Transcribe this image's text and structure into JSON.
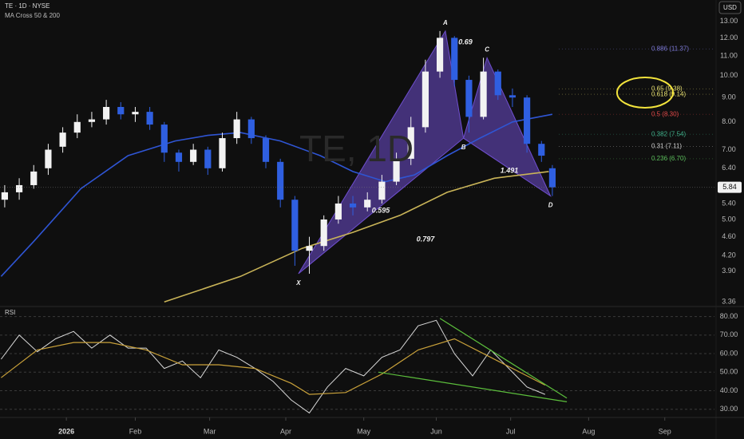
{
  "chart_data": [
    {
      "type": "candlestick",
      "title": "TE · 1D · NYSE",
      "subtitle": "MA Cross 50 & 200",
      "watermark": "TE, 1D",
      "currency": "USD",
      "log": true,
      "xlim": [
        -18.3,
        178.7
      ],
      "ylim": [
        3.3,
        14.4
      ],
      "yticks": [
        {
          "value": 13,
          "label": "13.00"
        },
        {
          "value": 12,
          "label": "12.00"
        },
        {
          "value": 11,
          "label": "11.00"
        },
        {
          "value": 10,
          "label": "10.00"
        },
        {
          "value": 9,
          "label": "9.00"
        },
        {
          "value": 8,
          "label": "8.00"
        },
        {
          "value": 7,
          "label": "7.00"
        },
        {
          "value": 6.4,
          "label": "6.40"
        },
        {
          "value": 5.4,
          "label": "5.40"
        },
        {
          "value": 5,
          "label": "5.00"
        },
        {
          "value": 4.6,
          "label": "4.60"
        },
        {
          "value": 4.2,
          "label": "4.20"
        },
        {
          "value": 3.9,
          "label": "3.90"
        },
        {
          "value": 3.36,
          "label": "3.36"
        }
      ],
      "up_color": "#f2f2f2",
      "down_color": "#2f5fe0",
      "x": [
        -17,
        -13,
        -9,
        -5,
        -1,
        3,
        7,
        11,
        15,
        19,
        23,
        27,
        31,
        35,
        39,
        43,
        47,
        51,
        55,
        59,
        63,
        67,
        71,
        75,
        79,
        83,
        87,
        91,
        95,
        99,
        103,
        107,
        111,
        115,
        119,
        123,
        127,
        131,
        134
      ],
      "open": [
        5.5,
        5.7,
        5.9,
        6.4,
        7.1,
        7.6,
        8.0,
        8.1,
        8.6,
        8.3,
        8.4,
        7.9,
        6.9,
        6.6,
        7.0,
        6.4,
        7.4,
        8.1,
        7.4,
        6.6,
        5.5,
        4.3,
        4.4,
        5.0,
        5.4,
        5.3,
        5.5,
        6.0,
        6.7,
        7.8,
        10.2,
        12.0,
        9.8,
        8.2,
        10.2,
        9.1,
        9.0,
        7.2,
        6.4
      ],
      "high": [
        5.9,
        6.1,
        6.5,
        7.2,
        7.8,
        8.3,
        8.4,
        8.9,
        8.8,
        8.6,
        8.6,
        8.0,
        7.0,
        7.2,
        7.1,
        7.6,
        8.4,
        8.2,
        7.5,
        6.7,
        5.6,
        4.6,
        5.1,
        5.6,
        5.6,
        5.7,
        6.2,
        6.9,
        8.2,
        10.8,
        12.4,
        12.1,
        10.0,
        10.9,
        10.3,
        9.4,
        9.1,
        7.3,
        6.5
      ],
      "low": [
        5.3,
        5.5,
        5.8,
        6.2,
        6.9,
        7.4,
        7.8,
        7.9,
        8.1,
        8.0,
        7.7,
        6.6,
        6.3,
        6.5,
        6.2,
        6.3,
        7.2,
        7.2,
        6.4,
        5.3,
        4.0,
        3.85,
        4.3,
        4.9,
        5.1,
        5.2,
        5.4,
        5.9,
        6.5,
        7.6,
        9.9,
        9.5,
        7.6,
        8.1,
        8.9,
        8.6,
        6.9,
        6.6,
        5.6
      ],
      "close": [
        5.7,
        5.9,
        6.3,
        7.0,
        7.6,
        8.0,
        8.1,
        8.6,
        8.3,
        8.4,
        7.9,
        6.9,
        6.6,
        7.0,
        6.4,
        7.4,
        8.1,
        7.4,
        6.6,
        5.5,
        4.3,
        4.4,
        5.0,
        5.4,
        5.3,
        5.5,
        6.0,
        6.7,
        7.8,
        10.2,
        12.0,
        9.8,
        8.2,
        10.2,
        9.1,
        9.0,
        7.2,
        6.8,
        5.84
      ],
      "last_label": {
        "value": 5.84,
        "label": "5.84"
      },
      "overlays": [
        {
          "color": "#2f55d4",
          "x": [
            -18,
            -9,
            4,
            17,
            30,
            39,
            48,
            59,
            70,
            79,
            88,
            96,
            105,
            114,
            123,
            134
          ],
          "values": [
            3.8,
            4.5,
            5.8,
            6.8,
            7.3,
            7.5,
            7.6,
            7.3,
            6.8,
            6.3,
            6.0,
            6.2,
            6.8,
            7.4,
            8.0,
            8.3
          ]
        },
        {
          "color": "#c9b458",
          "x": [
            27,
            48,
            65,
            79,
            92,
            105,
            118,
            133
          ],
          "values": [
            3.36,
            3.8,
            4.35,
            4.7,
            5.1,
            5.7,
            6.1,
            6.3
          ]
        }
      ],
      "pattern_color": "#6f4fd0",
      "pattern": [
        {
          "label": "X",
          "x": 64,
          "price": 3.85
        },
        {
          "label": "A",
          "x": 104.5,
          "price": 12.4
        },
        {
          "label": "B",
          "x": 109.5,
          "price": 7.4
        },
        {
          "label": "C",
          "x": 116,
          "price": 10.9
        },
        {
          "label": "D",
          "x": 133.5,
          "price": 5.6
        }
      ],
      "ratio_labels": [
        "0.69",
        "0.595",
        "0.797",
        "1.491"
      ],
      "fib_levels": [
        {
          "ratio": 0.886,
          "price": 11.37,
          "label": "0.886 (11.37)",
          "color": "#7e7ad8"
        },
        {
          "ratio": 0.65,
          "price": 9.38,
          "label": "0.65 (9.38)",
          "color": "#e8e070"
        },
        {
          "ratio": 0.618,
          "price": 9.14,
          "label": "0.618 (9.14)",
          "color": "#e8e070"
        },
        {
          "ratio": 0.5,
          "price": 8.3,
          "label": "0.5 (8.30)",
          "color": "#e04848"
        },
        {
          "ratio": 0.382,
          "price": 7.54,
          "label": "0.382 (7.54)",
          "color": "#3fb08a"
        },
        {
          "ratio": 0.31,
          "price": 7.11,
          "label": "0.31 (7.11)",
          "color": "#d0d0d0"
        },
        {
          "ratio": 0.236,
          "price": 6.7,
          "label": "0.236 (6.70)",
          "color": "#5cbf5c"
        }
      ]
    },
    {
      "type": "line",
      "title": "RSI",
      "xlim": [
        -18.3,
        178.7
      ],
      "ylim": [
        26,
        85
      ],
      "grid": true,
      "yticks": [
        {
          "value": 80,
          "label": "80.00"
        },
        {
          "value": 70,
          "label": "70.00"
        },
        {
          "value": 60,
          "label": "60.00"
        },
        {
          "value": 50,
          "label": "50.00"
        },
        {
          "value": 40,
          "label": "40.00"
        },
        {
          "value": 30,
          "label": "30.00"
        }
      ],
      "xticks": [
        {
          "value": 0,
          "label": "2026"
        },
        {
          "value": 19,
          "label": "Feb"
        },
        {
          "value": 39.5,
          "label": "Mar"
        },
        {
          "value": 60.5,
          "label": "Apr"
        },
        {
          "value": 82,
          "label": "May"
        },
        {
          "value": 102,
          "label": "Jun"
        },
        {
          "value": 122.5,
          "label": "Jul"
        },
        {
          "value": 144,
          "label": "Aug"
        },
        {
          "value": 165,
          "label": "Sep"
        }
      ],
      "series": [
        {
          "color": "#d8d8d8",
          "x": [
            -18,
            -13,
            -8,
            -3,
            2,
            7,
            12,
            17,
            22,
            27,
            32,
            37,
            42,
            47,
            52,
            57,
            62,
            67,
            72,
            77,
            82,
            87,
            92,
            97,
            102,
            107,
            112,
            117,
            122,
            127,
            132
          ],
          "values": [
            57,
            70,
            61,
            68,
            72,
            63,
            70,
            63,
            63,
            52,
            56,
            47,
            62,
            58,
            52,
            45,
            35,
            28,
            42,
            52,
            48,
            58,
            62,
            75,
            78,
            60,
            48,
            62,
            52,
            42,
            38
          ]
        },
        {
          "color": "#c9a13a",
          "x": [
            -18,
            -8,
            2,
            12,
            22,
            32,
            42,
            52,
            62,
            67,
            77,
            87,
            97,
            107,
            117,
            127,
            132
          ],
          "values": [
            47,
            62,
            66,
            66,
            62,
            54,
            54,
            52,
            44,
            38,
            39,
            49,
            62,
            68,
            58,
            48,
            43
          ]
        }
      ],
      "trendlines": [
        {
          "color": "#5cbf3c",
          "x": [
            103,
            138
          ],
          "values": [
            79,
            36
          ]
        },
        {
          "color": "#5cbf3c",
          "x": [
            86,
            138
          ],
          "values": [
            50,
            34
          ]
        }
      ]
    }
  ]
}
